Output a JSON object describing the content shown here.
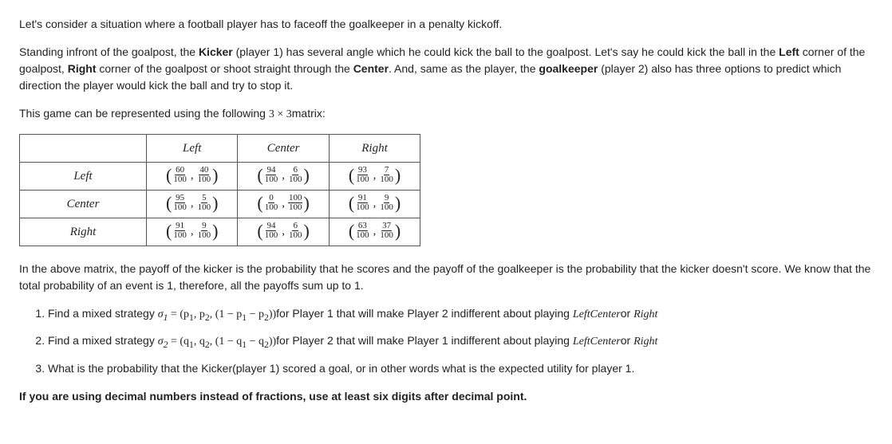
{
  "intro": {
    "p1": "Let's consider a situation where a football player has to faceoff the goalkeeper in a penalty kickoff.",
    "p2_a": "Standing infront of the goalpost, the ",
    "p2_kicker": "Kicker",
    "p2_b": " (player 1) has several angle which he could kick the ball to the goalpost. Let's say he could kick the ball in the ",
    "p2_left": "Left",
    "p2_c": " corner of the goalpost, ",
    "p2_right": "Right",
    "p2_d": " corner of the goalpost or shoot straight through the ",
    "p2_center": "Center",
    "p2_e": ". And, same as the player, the ",
    "p2_gk": "goalkeeper",
    "p2_f": " (player 2) also has three options to predict which direction the player would kick the ball and try to stop it.",
    "p3_a": "This game can be represented using the following ",
    "p3_dim": "3 × 3",
    "p3_b": "matrix:"
  },
  "table": {
    "col_headers": [
      "Left",
      "Center",
      "Right"
    ],
    "row_headers": [
      "Left",
      "Center",
      "Right"
    ],
    "cells": [
      [
        {
          "a": "60",
          "b": "40"
        },
        {
          "a": "94",
          "b": "6"
        },
        {
          "a": "93",
          "b": "7"
        }
      ],
      [
        {
          "a": "95",
          "b": "5"
        },
        {
          "a": "0",
          "b": "100"
        },
        {
          "a": "91",
          "b": "9"
        }
      ],
      [
        {
          "a": "91",
          "b": "9"
        },
        {
          "a": "94",
          "b": "6"
        },
        {
          "a": "63",
          "b": "37"
        }
      ]
    ],
    "denom": "100"
  },
  "explain": "In the above matrix, the payoff of the kicker is the probability that he scores and the payoff of the goalkeeper is the probability that the kicker doesn't score. We know that the total probability of an event is 1, therefore, all the payoffs sum up to 1.",
  "q1": {
    "a": "Find a mixed strategy ",
    "sigma": "σ",
    "sub": "1",
    "eq": " = (p",
    "s1": "1",
    "c1": ", p",
    "s2": "2",
    "c2": ", (1 − p",
    "s3": "1",
    "c3": " − p",
    "s4": "2",
    "c4": "))",
    "b": "for Player 1 that will make Player 2 indifferent about playing ",
    "lbl": "LeftCenter",
    "or": "or ",
    "r": "Right"
  },
  "q2": {
    "a": "Find a mixed strategy ",
    "sigma": "σ",
    "sub": "2",
    "eq": " = (q",
    "s1": "1",
    "c1": ", q",
    "s2": "2",
    "c2": ", (1 − q",
    "s3": "1",
    "c3": " − q",
    "s4": "2",
    "c4": "))",
    "b": "for Player 2 that will make Player 1 indifferent about playing ",
    "lbl": "LeftCenter",
    "or": "or ",
    "r": "Right"
  },
  "q3": "What is the probability that the Kicker(player 1) scored a goal, or in other words what is the expected utility for player 1.",
  "note": "If you are using decimal numbers instead of fractions, use at least six digits after decimal point."
}
